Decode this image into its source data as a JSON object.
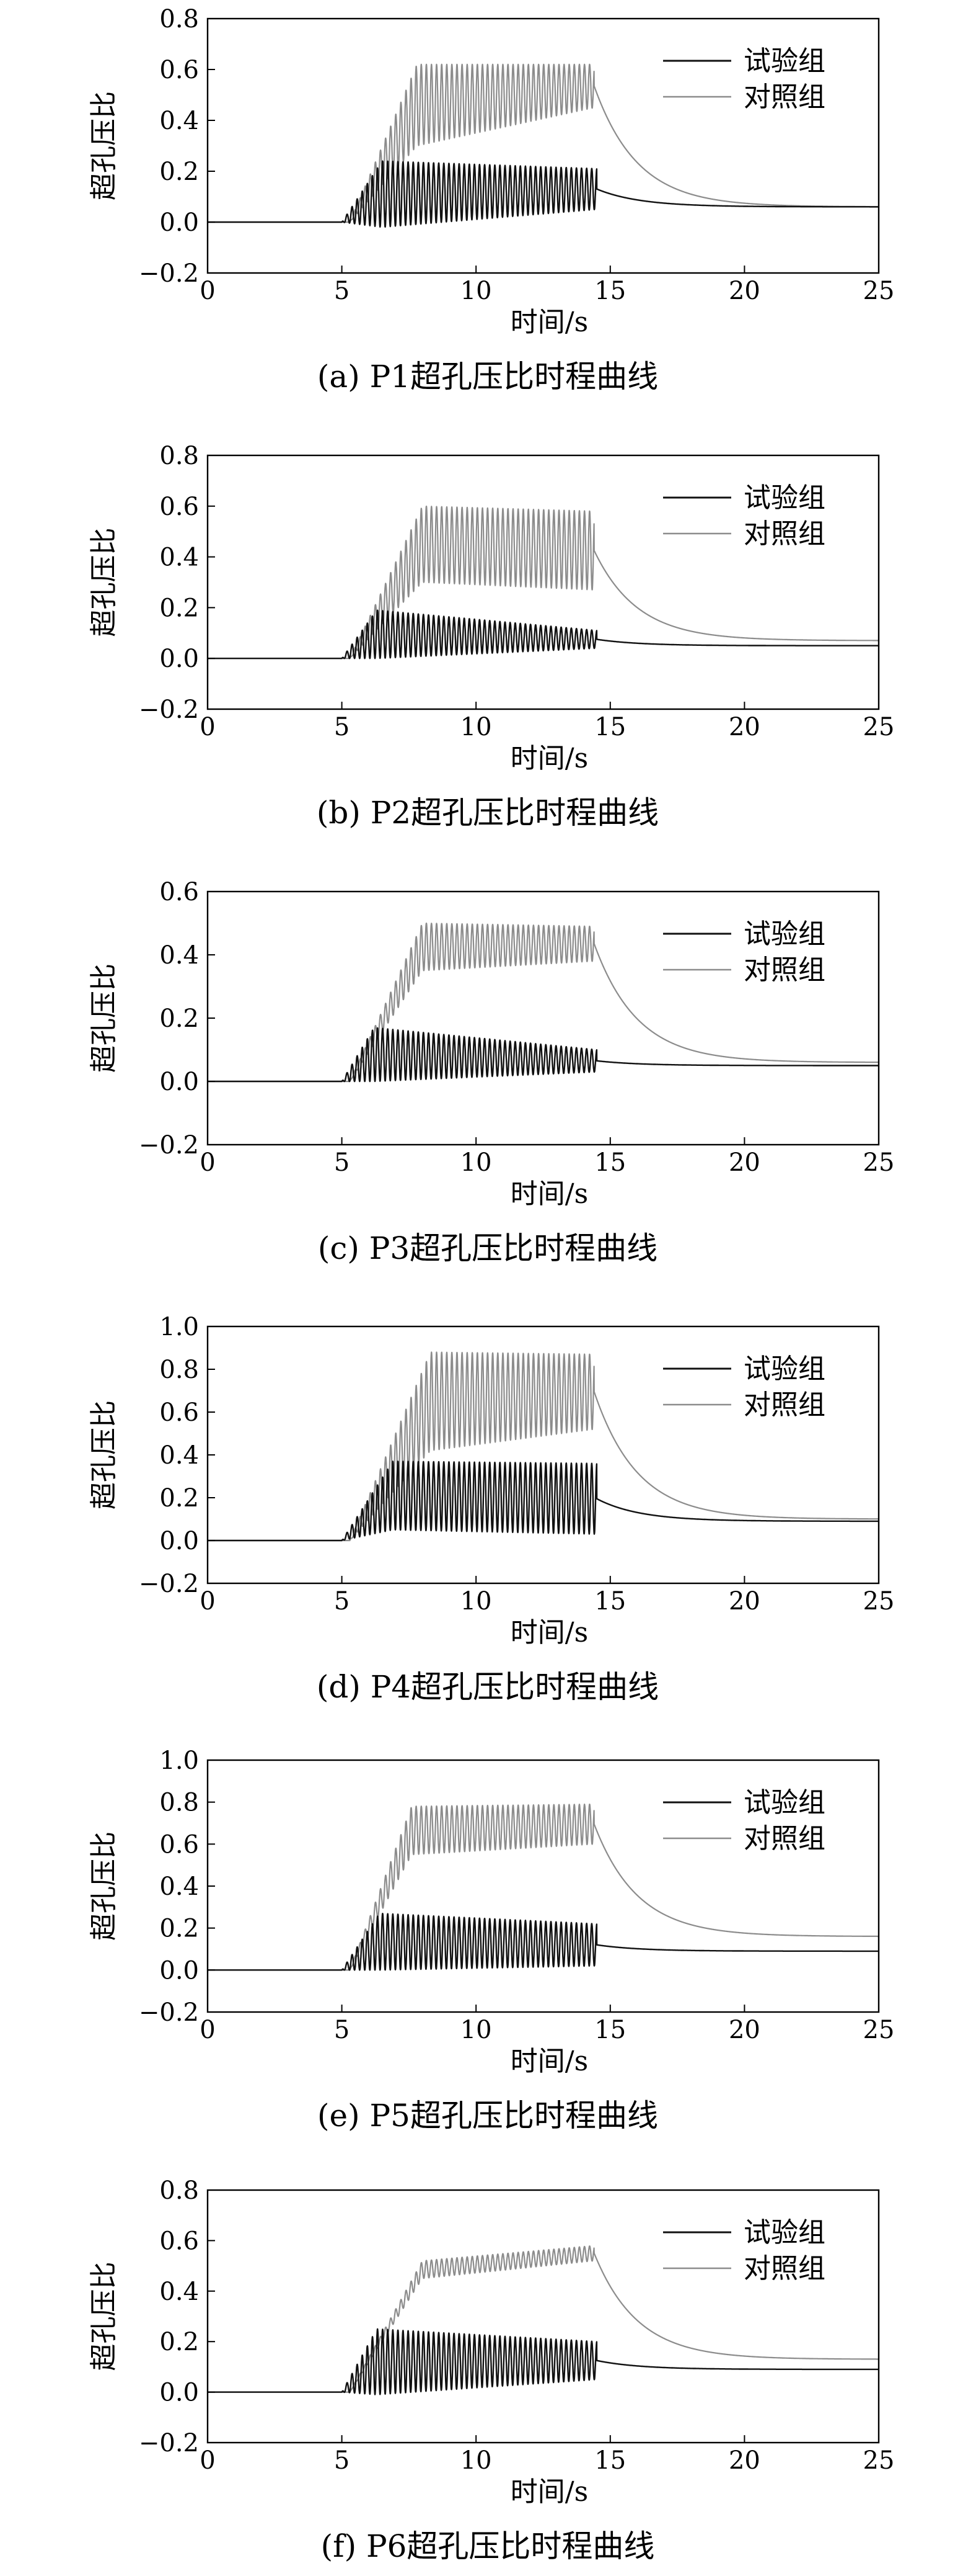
{
  "colors": {
    "experiment": "#111111",
    "control": "#8c8c8c",
    "axis": "#000000"
  },
  "legend_labels": {
    "experiment": "试验组",
    "control": "对照组"
  },
  "chart_data": [
    {
      "type": "line",
      "caption": "(a) P1超孔压比时程曲线",
      "xlabel": "时间/s",
      "ylabel": "超孔压比",
      "xlim": [
        0,
        25
      ],
      "ylim": [
        -0.2,
        0.8
      ],
      "xticks": [
        0,
        5,
        10,
        15,
        20,
        25
      ],
      "yticks": [
        -0.2,
        0.0,
        0.2,
        0.4,
        0.6,
        0.8
      ],
      "ytick_labels": [
        "−0.2",
        "0.0",
        "0.2",
        "0.4",
        "0.6",
        "0.8"
      ],
      "legend": "top-right",
      "series": [
        {
          "name": "试验组",
          "color": "#111111",
          "start": 5.0,
          "end": 14.5,
          "peak_time": 6.5,
          "peak": 0.24,
          "upper": 0.21,
          "lower": -0.02,
          "lower_end": 0.05,
          "final": 0.06
        },
        {
          "name": "对照组",
          "color": "#8c8c8c",
          "start": 5.3,
          "end": 14.4,
          "peak_time": 7.8,
          "peak": 0.62,
          "upper": 0.62,
          "lower": 0.3,
          "lower_end": 0.45,
          "final": 0.06
        }
      ]
    },
    {
      "type": "line",
      "caption": "(b) P2超孔压比时程曲线",
      "xlabel": "时间/s",
      "ylabel": "超孔压比",
      "xlim": [
        0,
        25
      ],
      "ylim": [
        -0.2,
        0.8
      ],
      "xticks": [
        0,
        5,
        10,
        15,
        20,
        25
      ],
      "yticks": [
        -0.2,
        0.0,
        0.2,
        0.4,
        0.6,
        0.8
      ],
      "ytick_labels": [
        "−0.2",
        "0.0",
        "0.2",
        "0.4",
        "0.6",
        "0.8"
      ],
      "legend": "top-right",
      "series": [
        {
          "name": "试验组",
          "color": "#111111",
          "start": 5.0,
          "end": 14.5,
          "peak_time": 6.3,
          "peak": 0.19,
          "upper": 0.11,
          "lower": 0.0,
          "lower_end": 0.04,
          "final": 0.05
        },
        {
          "name": "对照组",
          "color": "#8c8c8c",
          "start": 5.3,
          "end": 14.4,
          "peak_time": 8.0,
          "peak": 0.6,
          "upper": 0.58,
          "lower": 0.3,
          "lower_end": 0.27,
          "final": 0.07
        }
      ]
    },
    {
      "type": "line",
      "caption": "(c) P3超孔压比时程曲线",
      "xlabel": "时间/s",
      "ylabel": "超孔压比",
      "xlim": [
        0,
        25
      ],
      "ylim": [
        -0.2,
        0.6
      ],
      "xticks": [
        0,
        5,
        10,
        15,
        20,
        25
      ],
      "yticks": [
        -0.2,
        0.0,
        0.2,
        0.4,
        0.6
      ],
      "ytick_labels": [
        "−0.2",
        "0.0",
        "0.2",
        "0.4",
        "0.6"
      ],
      "legend": "top-right",
      "series": [
        {
          "name": "试验组",
          "color": "#111111",
          "start": 5.0,
          "end": 14.5,
          "peak_time": 6.2,
          "peak": 0.17,
          "upper": 0.1,
          "lower": 0.0,
          "lower_end": 0.03,
          "final": 0.05
        },
        {
          "name": "对照组",
          "color": "#8c8c8c",
          "start": 5.3,
          "end": 14.4,
          "peak_time": 8.0,
          "peak": 0.5,
          "upper": 0.49,
          "lower": 0.35,
          "lower_end": 0.38,
          "final": 0.06
        }
      ]
    },
    {
      "type": "line",
      "caption": "(d) P4超孔压比时程曲线",
      "xlabel": "时间/s",
      "ylabel": "超孔压比",
      "xlim": [
        0,
        25
      ],
      "ylim": [
        -0.2,
        1.0
      ],
      "xticks": [
        0,
        5,
        10,
        15,
        20,
        25
      ],
      "yticks": [
        -0.2,
        0.0,
        0.2,
        0.4,
        0.6,
        0.8,
        1.0
      ],
      "ytick_labels": [
        "−0.2",
        "0.0",
        "0.2",
        "0.4",
        "0.6",
        "0.8",
        "1.0"
      ],
      "legend": "top-right",
      "series": [
        {
          "name": "试验组",
          "color": "#111111",
          "start": 5.0,
          "end": 14.5,
          "peak_time": 6.9,
          "peak": 0.37,
          "upper": 0.36,
          "lower": 0.05,
          "lower_end": 0.03,
          "final": 0.09
        },
        {
          "name": "对照组",
          "color": "#8c8c8c",
          "start": 5.3,
          "end": 14.4,
          "peak_time": 8.3,
          "peak": 0.88,
          "upper": 0.87,
          "lower": 0.42,
          "lower_end": 0.52,
          "final": 0.1
        }
      ]
    },
    {
      "type": "line",
      "caption": "(e) P5超孔压比时程曲线",
      "xlabel": "时间/s",
      "ylabel": "超孔压比",
      "xlim": [
        0,
        25
      ],
      "ylim": [
        -0.2,
        1.0
      ],
      "xticks": [
        0,
        5,
        10,
        15,
        20,
        25
      ],
      "yticks": [
        -0.2,
        0.0,
        0.2,
        0.4,
        0.6,
        0.8,
        1.0
      ],
      "ytick_labels": [
        "−0.2",
        "0.0",
        "0.2",
        "0.4",
        "0.6",
        "0.8",
        "1.0"
      ],
      "legend": "top-right",
      "series": [
        {
          "name": "试验组",
          "color": "#111111",
          "start": 5.0,
          "end": 14.5,
          "peak_time": 6.4,
          "peak": 0.27,
          "upper": 0.22,
          "lower": 0.0,
          "lower_end": 0.02,
          "final": 0.09
        },
        {
          "name": "对照组",
          "color": "#8c8c8c",
          "start": 5.3,
          "end": 14.4,
          "peak_time": 7.6,
          "peak": 0.78,
          "upper": 0.79,
          "lower": 0.55,
          "lower_end": 0.6,
          "final": 0.16
        }
      ]
    },
    {
      "type": "line",
      "caption": "(f) P6超孔压比时程曲线",
      "xlabel": "时间/s",
      "ylabel": "超孔压比",
      "xlim": [
        0,
        25
      ],
      "ylim": [
        -0.2,
        0.8
      ],
      "xticks": [
        0,
        5,
        10,
        15,
        20,
        25
      ],
      "yticks": [
        -0.2,
        0.0,
        0.2,
        0.4,
        0.6,
        0.8
      ],
      "ytick_labels": [
        "−0.2",
        "0.0",
        "0.2",
        "0.4",
        "0.6",
        "0.8"
      ],
      "legend": "top-right",
      "series": [
        {
          "name": "试验组",
          "color": "#111111",
          "start": 5.0,
          "end": 14.5,
          "peak_time": 6.3,
          "peak": 0.25,
          "upper": 0.2,
          "lower": -0.01,
          "lower_end": 0.05,
          "final": 0.09
        },
        {
          "name": "对照组",
          "color": "#8c8c8c",
          "start": 5.3,
          "end": 14.4,
          "peak_time": 8.0,
          "peak": 0.52,
          "upper": 0.58,
          "lower": 0.45,
          "lower_end": 0.52,
          "final": 0.13
        }
      ]
    }
  ]
}
